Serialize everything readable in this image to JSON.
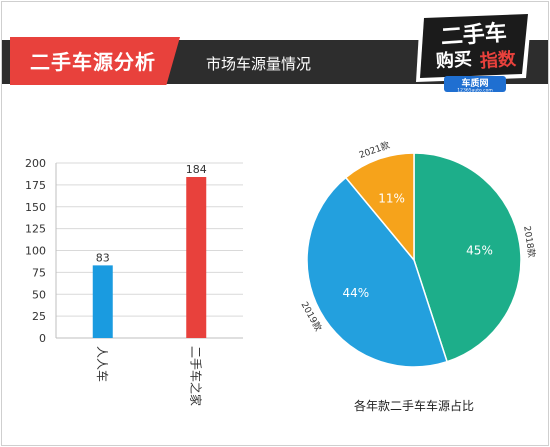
{
  "header": {
    "title": "二手车源分析",
    "subtitle": "市场车源量情况"
  },
  "logo": {
    "line1": "二手车",
    "line2_a": "购买",
    "line2_b": "指数",
    "site": "车质网",
    "url": "12365auto.com"
  },
  "colors": {
    "brand_red": "#e8413c",
    "header_dark": "#2d2d2d",
    "bar_blue": "#1a9be0",
    "bar_red": "#e8413c",
    "pie_green": "#1dae8a",
    "pie_blue": "#23a0de",
    "pie_orange": "#f6a31b"
  },
  "chart_data": [
    {
      "type": "bar",
      "categories": [
        "人人车",
        "二手车之家"
      ],
      "values": [
        83,
        184
      ],
      "colors": [
        "#1a9be0",
        "#e8413c"
      ],
      "ylim": [
        0,
        200
      ],
      "yticks": [
        0,
        25,
        50,
        75,
        100,
        125,
        150,
        175,
        200
      ],
      "grid": true
    },
    {
      "type": "pie",
      "title": "各年款二手车车源占比",
      "slices": [
        {
          "label": "2018款",
          "value": 45,
          "display": "45%",
          "color": "#1dae8a"
        },
        {
          "label": "2019款",
          "value": 44,
          "display": "44%",
          "color": "#23a0de"
        },
        {
          "label": "2021款",
          "value": 11,
          "display": "11%",
          "color": "#f6a31b"
        }
      ]
    }
  ]
}
